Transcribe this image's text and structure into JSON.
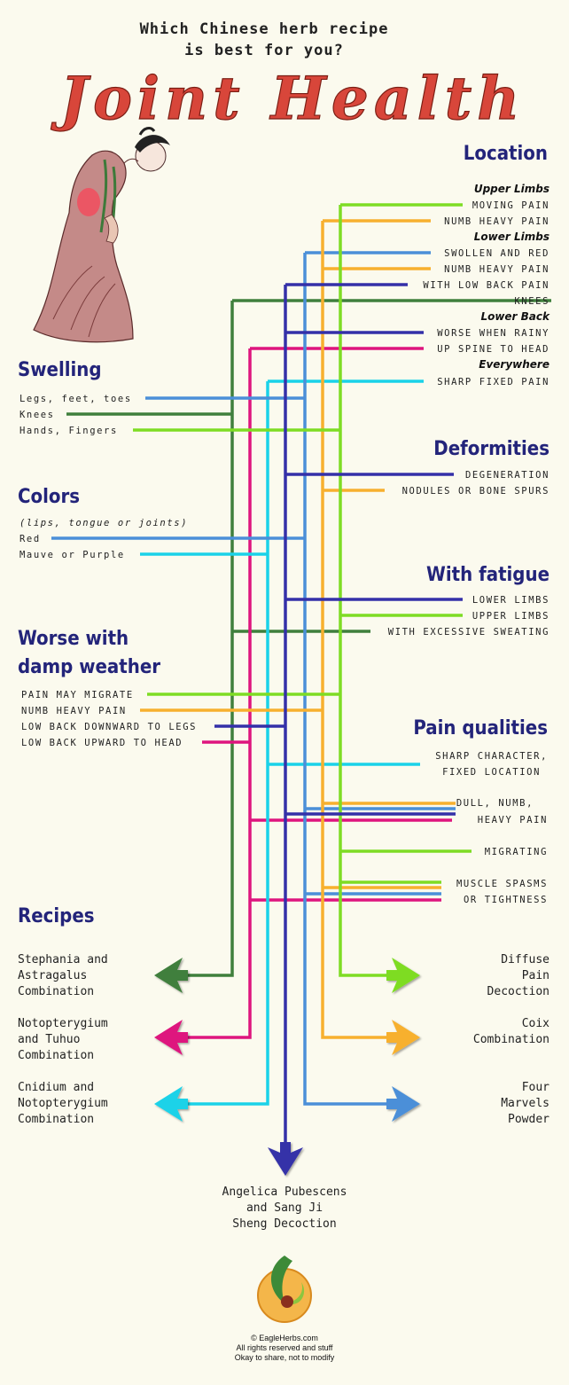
{
  "title": {
    "line1": "Which Chinese herb recipe",
    "line2": "is best for you?",
    "main": "Joint Health"
  },
  "colors": {
    "background": "#fbfaee",
    "heading": "#23247a",
    "title_red": "#d8463a",
    "stephania": "#3f7f3c",
    "notopterygium": "#de157e",
    "cnidium": "#1ad2e8",
    "angelica": "#3430a8",
    "diffuse": "#7edc24",
    "coix": "#f7b02e",
    "four_marvels": "#4b8fd8"
  },
  "sections": {
    "location": {
      "header": "Location",
      "upper_limbs": "Upper Limbs",
      "moving_pain": "MOVING PAIN",
      "numb_heavy_upper": "NUMB HEAVY PAIN",
      "lower_limbs": "Lower Limbs",
      "swollen_red": "SWOLLEN AND RED",
      "numb_heavy_lower": "NUMB HEAVY PAIN",
      "low_back_pain": "WITH LOW BACK PAIN",
      "knees": "KNEES",
      "lower_back": "Lower Back",
      "worse_rainy": "WORSE WHEN RAINY",
      "up_spine": "UP SPINE TO HEAD",
      "everywhere": "Everywhere",
      "sharp_fixed": "SHARP FIXED PAIN"
    },
    "swelling": {
      "header": "Swelling",
      "legs": "Legs, feet, toes",
      "knees": "Knees",
      "hands": "Hands, Fingers"
    },
    "deformities": {
      "header": "Deformities",
      "degeneration": "DEGENERATION",
      "nodules": "NODULES OR BONE SPURS"
    },
    "colors_sec": {
      "header": "Colors",
      "note": "(lips, tongue or joints)",
      "red": "Red",
      "mauve": "Mauve or Purple"
    },
    "fatigue": {
      "header": "With fatigue",
      "lower": "LOWER LIMBS",
      "upper": "UPPER LIMBS",
      "sweating": "WITH EXCESSIVE SWEATING"
    },
    "damp": {
      "header1": "Worse with",
      "header2": "damp weather",
      "migrate": "PAIN MAY MIGRATE",
      "numb": "NUMB HEAVY PAIN",
      "down_legs": "LOW BACK DOWNWARD TO LEGS",
      "up_head": "LOW BACK UPWARD TO HEAD"
    },
    "pain": {
      "header": "Pain qualities",
      "sharp1": "SHARP CHARACTER,",
      "sharp2": "FIXED LOCATION",
      "dull1": "DULL, NUMB,",
      "dull2": "HEAVY PAIN",
      "migrating": "MIGRATING",
      "spasms1": "MUSCLE SPASMS",
      "spasms2": "OR TIGHTNESS"
    }
  },
  "recipes": {
    "header": "Recipes",
    "stephania": [
      "Stephania and",
      "Astragalus",
      "Combination"
    ],
    "notopterygium": [
      "Notopterygium",
      "and Tuhuo",
      "Combination"
    ],
    "cnidium": [
      "Cnidium and",
      "Notopterygium",
      "Combination"
    ],
    "diffuse": [
      "Diffuse",
      "Pain",
      "Decoction"
    ],
    "coix": [
      "Coix",
      "Combination"
    ],
    "four_marvels": [
      "Four",
      "Marvels",
      "Powder"
    ],
    "angelica": [
      "Angelica Pubescens",
      "and Sang Ji",
      "Sheng Decoction"
    ]
  },
  "footer": {
    "site": "© EagleHerbs.com",
    "rights": "All rights reserved and stuff",
    "share": "Okay to share, not to modify"
  }
}
